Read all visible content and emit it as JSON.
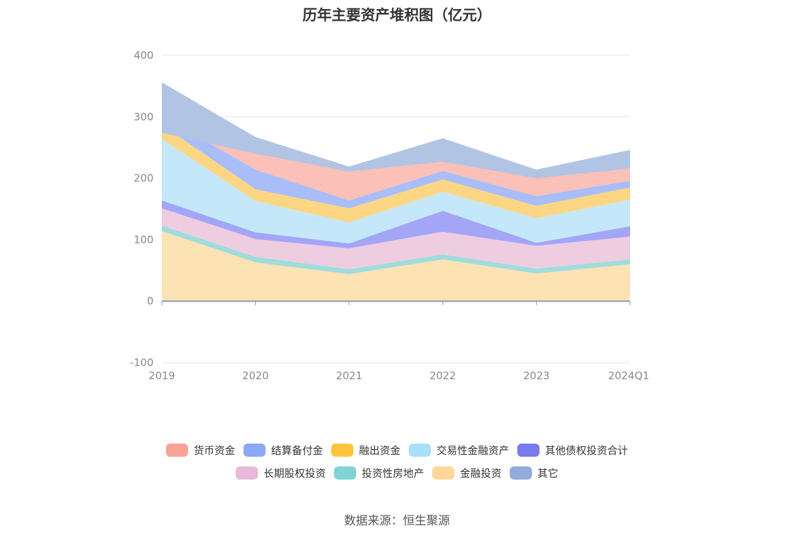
{
  "title": "历年主要资产堆积图（亿元）",
  "source": "数据来源：恒生聚源",
  "chart_data": {
    "type": "area",
    "stacked": true,
    "categories": [
      "2019",
      "2020",
      "2021",
      "2022",
      "2023",
      "2024Q1"
    ],
    "ylim": [
      -100,
      400
    ],
    "yticks": [
      -100,
      0,
      100,
      200,
      300,
      400
    ],
    "grid": true,
    "legend_position": "bottom",
    "series": [
      {
        "name": "金融投资",
        "color": "#fde2b4",
        "values": [
          114,
          63,
          44,
          68,
          45,
          60
        ]
      },
      {
        "name": "投资性房地产",
        "color": "#9fdcdc",
        "values": [
          9,
          9,
          8,
          8,
          8,
          8
        ]
      },
      {
        "name": "长期股权投资",
        "color": "#eecde0",
        "values": [
          28,
          29,
          34,
          37,
          37,
          37
        ]
      },
      {
        "name": "其他债权投资合计",
        "color": "#a3a5f7",
        "values": [
          13,
          11,
          8,
          34,
          5,
          17
        ]
      },
      {
        "name": "交易性金融资产",
        "color": "#c4e8f9",
        "values": [
          100,
          51,
          34,
          31,
          40,
          43
        ]
      },
      {
        "name": "融出资金",
        "color": "#fdd683",
        "values": [
          23,
          19,
          23,
          20,
          20,
          20
        ]
      },
      {
        "name": "结算备付金",
        "color": "#a9bef9",
        "values": [
          15,
          32,
          13,
          14,
          16,
          11
        ]
      },
      {
        "name": "货币资金",
        "color": "#fbc0b8",
        "values": [
          54,
          53,
          55,
          53,
          43,
          50
        ]
      },
      {
        "name": "其它",
        "color": "#b1c4e4",
        "values": [
          -82,
          -27,
          -8,
          -38,
          -14,
          -30
        ]
      }
    ]
  },
  "legend": [
    {
      "name": "货币资金",
      "color": "#f9a398"
    },
    {
      "name": "结算备付金",
      "color": "#8ea8f8"
    },
    {
      "name": "融出资金",
      "color": "#fdc43c"
    },
    {
      "name": "交易性金融资产",
      "color": "#a7e0f8"
    },
    {
      "name": "其他债权投资合计",
      "color": "#7a7af0"
    },
    {
      "name": "长期股权投资",
      "color": "#e8b9d8"
    },
    {
      "name": "投资性房地产",
      "color": "#82d4d4"
    },
    {
      "name": "金融投资",
      "color": "#fdd89a"
    },
    {
      "name": "其它",
      "color": "#91acda"
    }
  ]
}
